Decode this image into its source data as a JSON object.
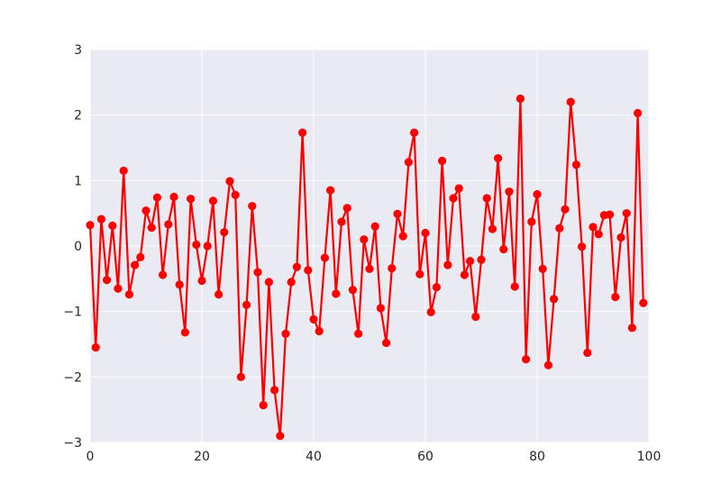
{
  "chart_data": {
    "type": "line",
    "title": "",
    "xlabel": "",
    "ylabel": "",
    "xlim": [
      0,
      100
    ],
    "ylim": [
      -3,
      3
    ],
    "grid": true,
    "legend": "none",
    "x_ticks": [
      0,
      20,
      40,
      60,
      80,
      100
    ],
    "y_ticks": [
      -3,
      -2,
      -1,
      0,
      1,
      2,
      3
    ],
    "x_tick_labels": [
      "0",
      "20",
      "40",
      "60",
      "80",
      "100"
    ],
    "y_tick_labels": [
      "−3",
      "−2",
      "−1",
      "0",
      "1",
      "2",
      "3"
    ],
    "colors": {
      "background": "#eaeaf2",
      "grid": "#ffffff",
      "series": "#ff0000",
      "text": "#262626"
    },
    "series": [
      {
        "marker": "circle",
        "x": [
          0,
          1,
          2,
          3,
          4,
          5,
          6,
          7,
          8,
          9,
          10,
          11,
          12,
          13,
          14,
          15,
          16,
          17,
          18,
          19,
          20,
          21,
          22,
          23,
          24,
          25,
          26,
          27,
          28,
          29,
          30,
          31,
          32,
          33,
          34,
          35,
          36,
          37,
          38,
          39,
          40,
          41,
          42,
          43,
          44,
          45,
          46,
          47,
          48,
          49,
          50,
          51,
          52,
          53,
          54,
          55,
          56,
          57,
          58,
          59,
          60,
          61,
          62,
          63,
          64,
          65,
          66,
          67,
          68,
          69,
          70,
          71,
          72,
          73,
          74,
          75,
          76,
          77,
          78,
          79,
          80,
          81,
          82,
          83,
          84,
          85,
          86,
          87,
          88,
          89,
          90,
          91,
          92,
          93,
          94,
          95,
          96,
          97,
          98,
          99
        ],
        "y": [
          0.32,
          -1.55,
          0.41,
          -0.52,
          0.31,
          -0.65,
          1.15,
          -0.74,
          -0.29,
          -0.17,
          0.54,
          0.28,
          0.74,
          -0.44,
          0.33,
          0.75,
          -0.59,
          -1.32,
          0.72,
          0.02,
          -0.53,
          0.0,
          0.69,
          -0.74,
          0.21,
          0.99,
          0.78,
          -2.0,
          -0.9,
          0.61,
          -0.4,
          -2.43,
          -0.55,
          -2.2,
          -2.9,
          -1.34,
          -0.55,
          -0.32,
          1.73,
          -0.37,
          -1.12,
          -1.3,
          -0.18,
          0.85,
          -0.73,
          0.37,
          0.58,
          -0.67,
          -1.34,
          0.1,
          -0.35,
          0.3,
          -0.95,
          -1.48,
          -0.34,
          0.49,
          0.15,
          1.28,
          1.73,
          -0.43,
          0.2,
          -1.01,
          -0.63,
          1.3,
          -0.29,
          0.73,
          0.88,
          -0.44,
          -0.23,
          -1.08,
          -0.21,
          0.73,
          0.26,
          1.34,
          -0.05,
          0.83,
          -0.62,
          2.25,
          -1.73,
          0.37,
          0.79,
          -0.35,
          -1.82,
          -0.81,
          0.27,
          0.56,
          2.2,
          1.24,
          -0.01,
          -1.63,
          0.29,
          0.18,
          0.47,
          0.48,
          -0.78,
          0.13,
          0.5,
          -1.25,
          2.03,
          -0.87
        ]
      }
    ]
  }
}
